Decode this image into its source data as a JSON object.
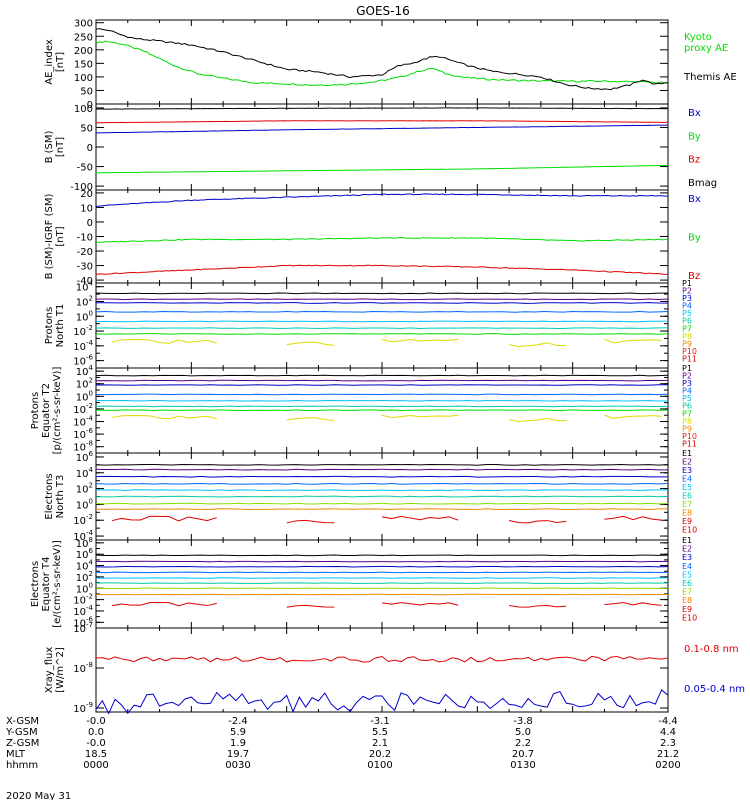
{
  "title": "GOES-16",
  "footer": {
    "rows": [
      {
        "label": "X-GSM",
        "values": [
          "-0.0",
          "-2.4",
          "-3.1",
          "-3.8",
          "-4.4"
        ]
      },
      {
        "label": "Y-GSM",
        "values": [
          "0.0",
          "5.9",
          "5.5",
          "5.0",
          "4.4"
        ]
      },
      {
        "label": "Z-GSM",
        "values": [
          "-0.0",
          "1.9",
          "2.1",
          "2.2",
          "2.3"
        ]
      },
      {
        "label": "MLT",
        "values": [
          "18.5",
          "19.7",
          "20.2",
          "20.7",
          "21.2"
        ]
      },
      {
        "label": "hhmm",
        "values": [
          "0000",
          "0030",
          "0100",
          "0130",
          "0200"
        ]
      }
    ],
    "date": "2020 May 31"
  },
  "colors": {
    "black": "#000000",
    "red": "#dd0000",
    "green": "#00dd00",
    "blue": "#0000cc",
    "P1": "#000000",
    "P2": "#550088",
    "P3": "#0000cc",
    "P4": "#0066ff",
    "P5": "#00c0ff",
    "P6": "#00ccaa",
    "P7": "#88dd00",
    "P8": "#dddd00",
    "P9": "#ee8800",
    "P10": "#dd2200",
    "P11": "#dd0000"
  },
  "chart_data": [
    {
      "type": "line",
      "ylabel": "AE_index\n[nT]",
      "yticks": [
        "300",
        "250",
        "200",
        "150",
        "100",
        "50",
        "0"
      ],
      "ylim": [
        0,
        310
      ],
      "x": [
        "0000",
        "0030",
        "0100",
        "0130",
        "0200"
      ],
      "series": [
        {
          "name": "Kyoto\nproxy AE",
          "color": "#00dd00",
          "points": [
            [
              0,
              225
            ],
            [
              3,
              232
            ],
            [
              8,
              222
            ],
            [
              15,
              195
            ],
            [
              25,
              140
            ],
            [
              32,
              112
            ],
            [
              40,
              95
            ],
            [
              50,
              78
            ],
            [
              60,
              75
            ],
            [
              68,
              70
            ],
            [
              78,
              72
            ],
            [
              88,
              82
            ],
            [
              96,
              100
            ],
            [
              102,
              122
            ],
            [
              106,
              132
            ],
            [
              110,
              112
            ],
            [
              116,
              98
            ],
            [
              122,
              92
            ],
            [
              130,
              88
            ],
            [
              140,
              85
            ],
            [
              150,
              84
            ],
            [
              160,
              84
            ],
            [
              170,
              82
            ],
            [
              180,
              78
            ]
          ]
        },
        {
          "name": "Themis AE",
          "color": "#000000",
          "points": [
            [
              0,
              278
            ],
            [
              4,
              272
            ],
            [
              8,
              255
            ],
            [
              12,
              242
            ],
            [
              20,
              232
            ],
            [
              30,
              218
            ],
            [
              40,
              192
            ],
            [
              50,
              160
            ],
            [
              60,
              128
            ],
            [
              70,
              118
            ],
            [
              80,
              100
            ],
            [
              90,
              108
            ],
            [
              95,
              140
            ],
            [
              100,
              152
            ],
            [
              105,
              172
            ],
            [
              108,
              175
            ],
            [
              112,
              160
            ],
            [
              118,
              138
            ],
            [
              125,
              120
            ],
            [
              133,
              110
            ],
            [
              140,
              100
            ],
            [
              148,
              72
            ],
            [
              155,
              58
            ],
            [
              162,
              55
            ],
            [
              168,
              70
            ],
            [
              172,
              90
            ],
            [
              176,
              72
            ],
            [
              180,
              80
            ]
          ]
        }
      ]
    },
    {
      "type": "line",
      "ylabel": "B (SM)\n[nT]",
      "yticks": [
        "100",
        "50",
        "0",
        "-50",
        "-100"
      ],
      "ylim": [
        -110,
        110
      ],
      "x": [
        "0000",
        "0030",
        "0100",
        "0130",
        "0200"
      ],
      "series": [
        {
          "name": "Bx",
          "color": "#0000cc",
          "points": [
            [
              0,
              36
            ],
            [
              60,
              44
            ],
            [
              120,
              50
            ],
            [
              180,
              56
            ]
          ]
        },
        {
          "name": "By",
          "color": "#00dd00",
          "points": [
            [
              0,
              -66
            ],
            [
              60,
              -61
            ],
            [
              120,
              -56
            ],
            [
              180,
              -47
            ]
          ]
        },
        {
          "name": "Bz",
          "color": "#dd0000",
          "points": [
            [
              0,
              62
            ],
            [
              60,
              67
            ],
            [
              120,
              67
            ],
            [
              180,
              63
            ]
          ]
        },
        {
          "name": "Bmag",
          "color": "#000000",
          "points": [
            [
              0,
              97
            ],
            [
              60,
              99
            ],
            [
              120,
              100
            ],
            [
              180,
              98
            ]
          ]
        }
      ]
    },
    {
      "type": "line",
      "ylabel": "B (SM)-IGRF (SM)\n[nT]",
      "yticks": [
        "20",
        "10",
        "0",
        "-10",
        "-20",
        "-30",
        "-40"
      ],
      "ylim": [
        -42,
        22
      ],
      "x": [
        "0000",
        "0030",
        "0100",
        "0130",
        "0200"
      ],
      "series": [
        {
          "name": "Bx",
          "color": "#0000cc",
          "points": [
            [
              0,
              11
            ],
            [
              30,
              15
            ],
            [
              60,
              17
            ],
            [
              90,
              19
            ],
            [
              120,
              19
            ],
            [
              150,
              18
            ],
            [
              180,
              18
            ]
          ]
        },
        {
          "name": "By",
          "color": "#00dd00",
          "points": [
            [
              0,
              -14
            ],
            [
              30,
              -12
            ],
            [
              60,
              -12
            ],
            [
              90,
              -11
            ],
            [
              120,
              -11
            ],
            [
              150,
              -13
            ],
            [
              180,
              -12
            ]
          ]
        },
        {
          "name": "Bz",
          "color": "#dd0000",
          "points": [
            [
              0,
              -36
            ],
            [
              30,
              -33
            ],
            [
              60,
              -30
            ],
            [
              90,
              -30
            ],
            [
              120,
              -31
            ],
            [
              150,
              -33
            ],
            [
              180,
              -36
            ]
          ]
        }
      ]
    },
    {
      "type": "line",
      "log": true,
      "ylabel": "Protons\nNorth T1",
      "yticks": [
        "10^4",
        "10^2",
        "10^0",
        "10^-2",
        "10^-4",
        "10^-6"
      ],
      "ylim": [
        -7,
        4.5
      ],
      "x": [
        "0000",
        "0030",
        "0100",
        "0130",
        "0200"
      ],
      "series": [
        {
          "name": "P1",
          "color": "#000000",
          "level": 3.1
        },
        {
          "name": "P2",
          "color": "#550088",
          "level": 2.3
        },
        {
          "name": "P3",
          "color": "#0000cc",
          "level": 1.8
        },
        {
          "name": "P4",
          "color": "#0066ff",
          "level": 0.6
        },
        {
          "name": "P5",
          "color": "#00c0ff",
          "level": -0.7
        },
        {
          "name": "P6",
          "color": "#00ccaa",
          "level": -1.6
        },
        {
          "name": "P7",
          "color": "#00dd00",
          "level": -2.4
        },
        {
          "name": "P8",
          "color": "#dddd00",
          "level": -3.4,
          "gappy": true
        },
        {
          "name": "P9",
          "color": "#ee8800"
        },
        {
          "name": "P10",
          "color": "#dd2200"
        },
        {
          "name": "P11",
          "color": "#dd0000"
        }
      ]
    },
    {
      "type": "line",
      "log": true,
      "ylabel": "Protons\nEquator T2\n[p/(cm²-s-sr-keV)]",
      "yticks": [
        "10^4",
        "10^2",
        "10^0",
        "10^-2",
        "10^-4",
        "10^-6",
        "10^-8"
      ],
      "ylim": [
        -9,
        4.5
      ],
      "x": [
        "0000",
        "0030",
        "0100",
        "0130",
        "0200"
      ],
      "series": [
        {
          "name": "P1",
          "color": "#000000",
          "level": 3.3
        },
        {
          "name": "P2",
          "color": "#550088",
          "level": 2.5
        },
        {
          "name": "P3",
          "color": "#0000cc",
          "level": 1.8
        },
        {
          "name": "P4",
          "color": "#0066ff",
          "level": 0.3
        },
        {
          "name": "P5",
          "color": "#00c0ff",
          "level": -0.7
        },
        {
          "name": "P6",
          "color": "#00ccaa",
          "level": -1.6
        },
        {
          "name": "P7",
          "color": "#00dd00",
          "level": -2.2
        },
        {
          "name": "P8",
          "color": "#dddd00",
          "level": -3.3,
          "gappy": true
        },
        {
          "name": "P9",
          "color": "#ee8800"
        },
        {
          "name": "P10",
          "color": "#dd2200"
        },
        {
          "name": "P11",
          "color": "#dd0000"
        }
      ]
    },
    {
      "type": "line",
      "log": true,
      "ylabel": "Electrons\nNorth T3",
      "yticks": [
        "10^6",
        "10^4",
        "10^2",
        "10^0",
        "10^-2",
        "10^-4"
      ],
      "ylim": [
        -4.5,
        6.5
      ],
      "x": [
        "0000",
        "0030",
        "0100",
        "0130",
        "0200"
      ],
      "series": [
        {
          "name": "E1",
          "color": "#000000",
          "level": 5.0
        },
        {
          "name": "E2",
          "color": "#550088",
          "level": 4.4
        },
        {
          "name": "E3",
          "color": "#0000cc",
          "level": 3.5
        },
        {
          "name": "E4",
          "color": "#0066ff",
          "level": 2.6
        },
        {
          "name": "E5",
          "color": "#00c0ff",
          "level": 1.8
        },
        {
          "name": "E6",
          "color": "#00ccaa",
          "level": 1.0
        },
        {
          "name": "E7",
          "color": "#88dd00",
          "level": 0.1
        },
        {
          "name": "E8",
          "color": "#ee8800",
          "level": -0.6
        },
        {
          "name": "E9",
          "color": "#dd0000",
          "level": -1.8,
          "gappy": true
        },
        {
          "name": "E10",
          "color": "#dd0000"
        }
      ]
    },
    {
      "type": "line",
      "log": true,
      "ylabel": "Electrons\nEquator T4\n[e/(cm²-s-sr-keV)]",
      "yticks": [
        "10^8",
        "10^6",
        "10^4",
        "10^2",
        "10^0",
        "10^-2",
        "10^-4",
        "10^-6"
      ],
      "ylim": [
        -7,
        8.5
      ],
      "x": [
        "0000",
        "0030",
        "0100",
        "0130",
        "0200"
      ],
      "series": [
        {
          "name": "E1",
          "color": "#000000",
          "level": 5.8
        },
        {
          "name": "E2",
          "color": "#550088",
          "level": 4.7
        },
        {
          "name": "E3",
          "color": "#0000cc",
          "level": 3.8
        },
        {
          "name": "E4",
          "color": "#0066ff",
          "level": 2.8
        },
        {
          "name": "E5",
          "color": "#00c0ff",
          "level": 1.8
        },
        {
          "name": "E6",
          "color": "#00ccaa",
          "level": 0.9
        },
        {
          "name": "E7",
          "color": "#88dd00",
          "level": 0.0
        },
        {
          "name": "E8",
          "color": "#ee8800",
          "level": -1.1
        },
        {
          "name": "E9",
          "color": "#dd0000",
          "level": -2.8,
          "gappy": true
        },
        {
          "name": "E10",
          "color": "#dd0000"
        }
      ]
    },
    {
      "type": "line",
      "log": true,
      "ylabel": "Xray_flux\n[W/m^2]",
      "yticks": [
        "10^-7",
        "10^-8",
        "10^-9"
      ],
      "ylim": [
        -9.1,
        -7
      ],
      "x": [
        "0000",
        "0030",
        "0100",
        "0130",
        "0200"
      ],
      "series": [
        {
          "name": "0.1-0.8 nm",
          "color": "#dd0000",
          "level": -7.78
        },
        {
          "name": "0.05-0.4 nm",
          "color": "#0000cc",
          "level": -8.85
        }
      ]
    }
  ]
}
